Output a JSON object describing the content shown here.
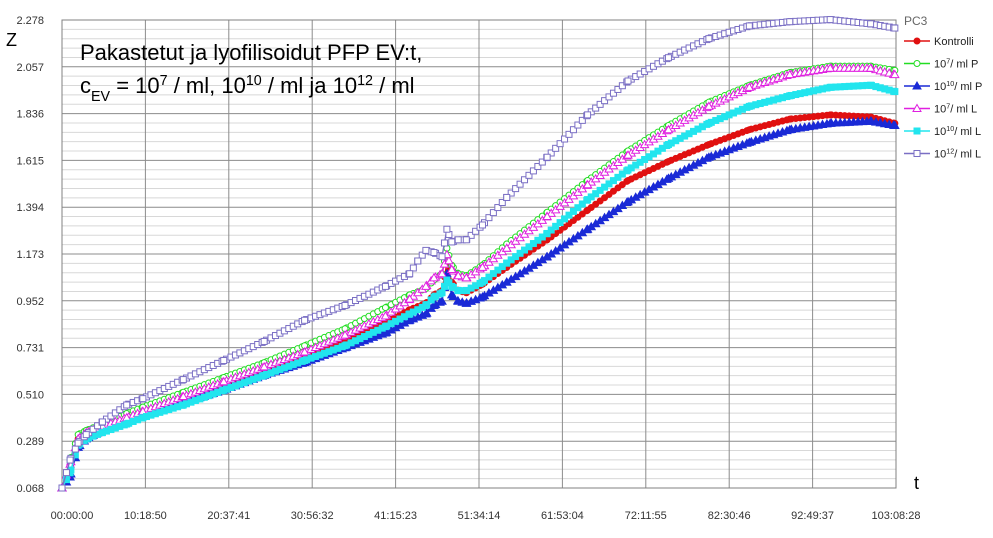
{
  "chart_data": {
    "type": "line",
    "title_lines": [
      {
        "parts": [
          {
            "t": "Pakastetut ja lyofilisoidut PFP EV:t,",
            "s": ""
          }
        ]
      },
      {
        "parts": [
          {
            "t": "c",
            "s": ""
          },
          {
            "t": "EV",
            "s": "sub"
          },
          {
            "t": " = 10",
            "s": ""
          },
          {
            "t": "7",
            "s": "sup"
          },
          {
            "t": " / ml, 10",
            "s": ""
          },
          {
            "t": "10",
            "s": "sup"
          },
          {
            "t": " / ml ja 10",
            "s": ""
          },
          {
            "t": "12",
            "s": "sup"
          },
          {
            "t": " / ml",
            "s": ""
          }
        ]
      }
    ],
    "ylabel": "Z",
    "xlabel": "t",
    "legend_title": "PC3",
    "y_ticks": [
      "0.068",
      "0.289",
      "0.510",
      "0.731",
      "0.952",
      "1.173",
      "1.394",
      "1.615",
      "1.836",
      "2.057",
      "2.278"
    ],
    "ylim": [
      0.068,
      2.278
    ],
    "x_ticks": [
      "00:00:00",
      "10:18:50",
      "20:37:41",
      "30:56:32",
      "41:15:23",
      "51:34:14",
      "61:53:04",
      "72:11:55",
      "82:30:46",
      "92:49:37",
      "103:08:28"
    ],
    "xlim_hours": [
      0,
      103.141
    ],
    "grid": true,
    "legend_position": "right",
    "series": [
      {
        "name": "Kontrolli",
        "label_parts": [
          {
            "t": "Kontrolli",
            "s": ""
          }
        ],
        "color": "#e01010",
        "marker": "circle-filled",
        "points": [
          [
            0,
            0.068
          ],
          [
            1,
            0.15
          ],
          [
            2,
            0.3
          ],
          [
            3,
            0.33
          ],
          [
            5,
            0.36
          ],
          [
            8,
            0.41
          ],
          [
            10,
            0.43
          ],
          [
            15,
            0.5
          ],
          [
            20,
            0.56
          ],
          [
            25,
            0.63
          ],
          [
            30,
            0.7
          ],
          [
            35,
            0.77
          ],
          [
            40,
            0.85
          ],
          [
            43,
            0.91
          ],
          [
            45,
            0.94
          ],
          [
            46,
            0.98
          ],
          [
            47,
            1.0
          ],
          [
            47.6,
            1.13
          ],
          [
            48.2,
            1.04
          ],
          [
            49,
            1.0
          ],
          [
            50,
            0.99
          ],
          [
            52,
            1.03
          ],
          [
            55,
            1.11
          ],
          [
            60,
            1.24
          ],
          [
            65,
            1.38
          ],
          [
            70,
            1.52
          ],
          [
            75,
            1.61
          ],
          [
            80,
            1.69
          ],
          [
            85,
            1.76
          ],
          [
            90,
            1.81
          ],
          [
            95,
            1.83
          ],
          [
            100,
            1.82
          ],
          [
            103,
            1.79
          ]
        ]
      },
      {
        "name": "10^7 / ml P",
        "label_parts": [
          {
            "t": "10",
            "s": ""
          },
          {
            "t": "7",
            "s": "sup"
          },
          {
            "t": "/ ml P",
            "s": ""
          }
        ],
        "color": "#22dd22",
        "marker": "circle-open",
        "points": [
          [
            0,
            0.068
          ],
          [
            1,
            0.2
          ],
          [
            2,
            0.32
          ],
          [
            3,
            0.34
          ],
          [
            5,
            0.37
          ],
          [
            8,
            0.42
          ],
          [
            10,
            0.45
          ],
          [
            15,
            0.52
          ],
          [
            20,
            0.59
          ],
          [
            25,
            0.66
          ],
          [
            30,
            0.74
          ],
          [
            35,
            0.82
          ],
          [
            40,
            0.92
          ],
          [
            43,
            0.98
          ],
          [
            45,
            1.01
          ],
          [
            46,
            1.05
          ],
          [
            47,
            1.08
          ],
          [
            47.6,
            1.2
          ],
          [
            48.2,
            1.12
          ],
          [
            49,
            1.08
          ],
          [
            50,
            1.07
          ],
          [
            52,
            1.12
          ],
          [
            55,
            1.22
          ],
          [
            60,
            1.37
          ],
          [
            65,
            1.52
          ],
          [
            70,
            1.66
          ],
          [
            75,
            1.78
          ],
          [
            80,
            1.89
          ],
          [
            85,
            1.97
          ],
          [
            90,
            2.03
          ],
          [
            95,
            2.06
          ],
          [
            100,
            2.06
          ],
          [
            103,
            2.04
          ]
        ]
      },
      {
        "name": "10^10 / ml P",
        "label_parts": [
          {
            "t": "10",
            "s": ""
          },
          {
            "t": "10",
            "s": "sup"
          },
          {
            "t": "/ ml P",
            "s": ""
          }
        ],
        "color": "#1a2ad6",
        "marker": "triangle-filled",
        "points": [
          [
            0,
            0.068
          ],
          [
            1,
            0.12
          ],
          [
            2,
            0.26
          ],
          [
            3,
            0.3
          ],
          [
            5,
            0.34
          ],
          [
            8,
            0.39
          ],
          [
            10,
            0.41
          ],
          [
            15,
            0.47
          ],
          [
            20,
            0.53
          ],
          [
            25,
            0.6
          ],
          [
            30,
            0.66
          ],
          [
            35,
            0.73
          ],
          [
            40,
            0.8
          ],
          [
            43,
            0.86
          ],
          [
            45,
            0.89
          ],
          [
            46,
            0.93
          ],
          [
            47,
            0.95
          ],
          [
            47.6,
            1.08
          ],
          [
            48.2,
            0.98
          ],
          [
            49,
            0.95
          ],
          [
            50,
            0.94
          ],
          [
            52,
            0.97
          ],
          [
            55,
            1.04
          ],
          [
            60,
            1.16
          ],
          [
            65,
            1.29
          ],
          [
            70,
            1.42
          ],
          [
            75,
            1.53
          ],
          [
            80,
            1.63
          ],
          [
            85,
            1.7
          ],
          [
            90,
            1.76
          ],
          [
            95,
            1.79
          ],
          [
            100,
            1.8
          ],
          [
            103,
            1.78
          ]
        ]
      },
      {
        "name": "10^7 / ml L",
        "label_parts": [
          {
            "t": " 10",
            "s": ""
          },
          {
            "t": "7",
            "s": "sup"
          },
          {
            "t": "/ ml L",
            "s": ""
          }
        ],
        "color": "#e020e0",
        "marker": "triangle-open",
        "points": [
          [
            0,
            0.068
          ],
          [
            1,
            0.18
          ],
          [
            2,
            0.3
          ],
          [
            3,
            0.33
          ],
          [
            5,
            0.36
          ],
          [
            8,
            0.4
          ],
          [
            10,
            0.43
          ],
          [
            15,
            0.5
          ],
          [
            20,
            0.57
          ],
          [
            25,
            0.64
          ],
          [
            30,
            0.71
          ],
          [
            35,
            0.79
          ],
          [
            40,
            0.88
          ],
          [
            43,
            0.96
          ],
          [
            45,
            1.02
          ],
          [
            46,
            1.06
          ],
          [
            47,
            1.08
          ],
          [
            47.6,
            1.17
          ],
          [
            48.2,
            1.1
          ],
          [
            49,
            1.07
          ],
          [
            50,
            1.06
          ],
          [
            52,
            1.11
          ],
          [
            55,
            1.2
          ],
          [
            60,
            1.35
          ],
          [
            65,
            1.5
          ],
          [
            70,
            1.64
          ],
          [
            75,
            1.76
          ],
          [
            80,
            1.87
          ],
          [
            85,
            1.96
          ],
          [
            90,
            2.02
          ],
          [
            95,
            2.05
          ],
          [
            100,
            2.05
          ],
          [
            103,
            2.02
          ]
        ]
      },
      {
        "name": "10^10 / ml L",
        "label_parts": [
          {
            "t": "10",
            "s": ""
          },
          {
            "t": "10",
            "s": "sup"
          },
          {
            "t": "/ ml L",
            "s": ""
          }
        ],
        "color": "#22e5ee",
        "marker": "square-filled",
        "points": [
          [
            0,
            0.068
          ],
          [
            1,
            0.14
          ],
          [
            2,
            0.27
          ],
          [
            3,
            0.3
          ],
          [
            5,
            0.33
          ],
          [
            8,
            0.37
          ],
          [
            10,
            0.4
          ],
          [
            15,
            0.46
          ],
          [
            20,
            0.53
          ],
          [
            25,
            0.6
          ],
          [
            30,
            0.67
          ],
          [
            35,
            0.74
          ],
          [
            40,
            0.83
          ],
          [
            43,
            0.89
          ],
          [
            45,
            0.93
          ],
          [
            46,
            0.97
          ],
          [
            47,
            0.99
          ],
          [
            47.6,
            1.05
          ],
          [
            48.2,
            1.02
          ],
          [
            49,
            1.0
          ],
          [
            50,
            1.0
          ],
          [
            52,
            1.04
          ],
          [
            55,
            1.13
          ],
          [
            60,
            1.27
          ],
          [
            65,
            1.43
          ],
          [
            70,
            1.57
          ],
          [
            75,
            1.69
          ],
          [
            80,
            1.79
          ],
          [
            85,
            1.87
          ],
          [
            90,
            1.92
          ],
          [
            95,
            1.96
          ],
          [
            100,
            1.97
          ],
          [
            103,
            1.94
          ]
        ]
      },
      {
        "name": "10^12 / ml L",
        "label_parts": [
          {
            "t": "10",
            "s": ""
          },
          {
            "t": "12",
            "s": "sup"
          },
          {
            "t": "/ ml L",
            "s": ""
          }
        ],
        "color": "#7a6fc4",
        "marker": "square-open",
        "points": [
          [
            0,
            0.068
          ],
          [
            1,
            0.2
          ],
          [
            2,
            0.28
          ],
          [
            3,
            0.32
          ],
          [
            5,
            0.38
          ],
          [
            8,
            0.46
          ],
          [
            10,
            0.49
          ],
          [
            15,
            0.58
          ],
          [
            20,
            0.67
          ],
          [
            25,
            0.76
          ],
          [
            30,
            0.86
          ],
          [
            35,
            0.93
          ],
          [
            40,
            1.02
          ],
          [
            43,
            1.08
          ],
          [
            44,
            1.14
          ],
          [
            45,
            1.19
          ],
          [
            46,
            1.18
          ],
          [
            47,
            1.16
          ],
          [
            47.6,
            1.29
          ],
          [
            48.2,
            1.23
          ],
          [
            49,
            1.24
          ],
          [
            50,
            1.24
          ],
          [
            52,
            1.31
          ],
          [
            55,
            1.44
          ],
          [
            60,
            1.63
          ],
          [
            65,
            1.83
          ],
          [
            70,
            1.99
          ],
          [
            75,
            2.1
          ],
          [
            80,
            2.19
          ],
          [
            85,
            2.25
          ],
          [
            90,
            2.27
          ],
          [
            95,
            2.28
          ],
          [
            100,
            2.26
          ],
          [
            103,
            2.24
          ]
        ]
      }
    ]
  }
}
